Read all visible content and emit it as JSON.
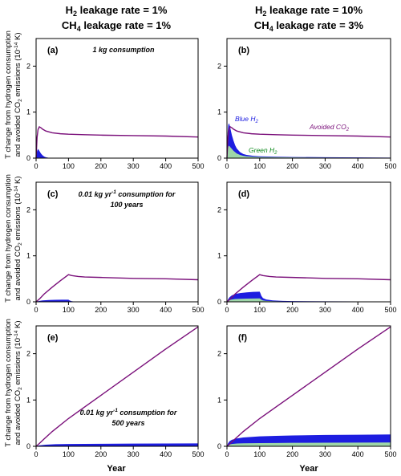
{
  "columns": [
    {
      "line1_main": "H",
      "line1_sub": "2",
      "line1_rest": " leakage rate = 1%",
      "line2_main": "CH",
      "line2_sub": "4",
      "line2_rest": " leakage rate = 1%"
    },
    {
      "line1_main": "H",
      "line1_sub": "2",
      "line1_rest": " leakage rate = 10%",
      "line2_main": "CH",
      "line2_sub": "4",
      "line2_rest": " leakage rate = 3%"
    }
  ],
  "ylabel_line1": "T change from hydrogen consumption",
  "ylabel_line2_a": "and avoided CO",
  "ylabel_line2_sub": "2",
  "ylabel_line2_b": " emissions (10",
  "ylabel_line2_sup": "-14",
  "ylabel_line2_c": " K)",
  "xlabel": "Year",
  "colors": {
    "avoided_co2": "#7a0f7a",
    "blue_h2": "#1d1de0",
    "green_h2": "#9ed6a8"
  },
  "series_labels": {
    "blue_main": "Blue H",
    "blue_sub": "2",
    "green_main": "Green H",
    "green_sub": "2",
    "co2_main": "Avoided CO",
    "co2_sub": "2"
  },
  "rows": [
    {
      "a1": "1 kg consumption",
      "a2": ""
    },
    {
      "a1": "0.01 kg yr",
      "a1_sup": "-1",
      "a1_rest": " consumption for",
      "a2": "100 years"
    },
    {
      "a1": "0.01 kg yr",
      "a1_sup": "-1",
      "a1_rest": " consumption for",
      "a2": "500 years"
    }
  ],
  "chart_data": [
    {
      "panel": "(a)",
      "type": "area",
      "xlim": [
        0,
        500
      ],
      "ylim": [
        0,
        2.6
      ],
      "xticks": [
        0,
        100,
        200,
        300,
        400,
        500
      ],
      "yticks": [
        0,
        1,
        2
      ],
      "series": [
        {
          "name": "Avoided CO2",
          "kind": "line",
          "x": [
            0,
            3,
            6,
            10,
            15,
            20,
            30,
            50,
            75,
            100,
            150,
            200,
            300,
            400,
            500
          ],
          "y": [
            0,
            0.45,
            0.62,
            0.68,
            0.66,
            0.63,
            0.59,
            0.55,
            0.53,
            0.52,
            0.51,
            0.5,
            0.49,
            0.48,
            0.46
          ]
        },
        {
          "name": "Blue H2",
          "kind": "area",
          "x": [
            0,
            3,
            6,
            10,
            15,
            20,
            25,
            30,
            35,
            40,
            500
          ],
          "y": [
            0,
            0.15,
            0.2,
            0.16,
            0.1,
            0.06,
            0.035,
            0.02,
            0.012,
            0.005,
            0
          ]
        },
        {
          "name": "Green H2",
          "kind": "area",
          "x": [
            0,
            5,
            10,
            20,
            40,
            500
          ],
          "y": [
            0,
            0.01,
            0.01,
            0.005,
            0.002,
            0
          ]
        }
      ]
    },
    {
      "panel": "(b)",
      "type": "area",
      "xlim": [
        0,
        500
      ],
      "ylim": [
        0,
        2.6
      ],
      "xticks": [
        0,
        100,
        200,
        300,
        400,
        500
      ],
      "yticks": [
        0,
        1,
        2
      ],
      "series": [
        {
          "name": "Avoided CO2",
          "kind": "line",
          "x": [
            0,
            3,
            6,
            10,
            15,
            20,
            30,
            50,
            75,
            100,
            150,
            200,
            300,
            400,
            500
          ],
          "y": [
            0,
            0.45,
            0.62,
            0.68,
            0.66,
            0.63,
            0.59,
            0.55,
            0.53,
            0.52,
            0.51,
            0.5,
            0.49,
            0.48,
            0.46
          ]
        },
        {
          "name": "Blue H2",
          "kind": "area",
          "x": [
            0,
            2,
            4,
            6,
            8,
            10,
            15,
            20,
            25,
            30,
            40,
            50,
            60,
            80,
            100,
            150,
            200,
            300,
            400,
            500
          ],
          "y": [
            0,
            0.55,
            0.72,
            0.76,
            0.72,
            0.66,
            0.5,
            0.38,
            0.28,
            0.21,
            0.13,
            0.09,
            0.07,
            0.05,
            0.04,
            0.03,
            0.025,
            0.02,
            0.015,
            0.01
          ]
        },
        {
          "name": "Green H2",
          "kind": "area",
          "x": [
            0,
            2,
            4,
            6,
            8,
            10,
            15,
            20,
            30,
            40,
            50,
            60,
            80,
            100,
            150,
            200,
            300,
            400,
            500
          ],
          "y": [
            0,
            0.18,
            0.25,
            0.27,
            0.26,
            0.24,
            0.2,
            0.16,
            0.1,
            0.07,
            0.05,
            0.04,
            0.03,
            0.025,
            0.02,
            0.015,
            0.01,
            0.008,
            0.005
          ]
        }
      ]
    },
    {
      "panel": "(c)",
      "type": "area",
      "xlim": [
        0,
        500
      ],
      "ylim": [
        0,
        2.6
      ],
      "xticks": [
        0,
        100,
        200,
        300,
        400,
        500
      ],
      "yticks": [
        0,
        1,
        2
      ],
      "series": [
        {
          "name": "Avoided CO2",
          "kind": "line",
          "x": [
            0,
            10,
            25,
            50,
            75,
            100,
            110,
            130,
            150,
            200,
            300,
            400,
            500
          ],
          "y": [
            0,
            0.06,
            0.17,
            0.32,
            0.46,
            0.59,
            0.57,
            0.55,
            0.54,
            0.53,
            0.51,
            0.5,
            0.48
          ]
        },
        {
          "name": "Blue H2",
          "kind": "area",
          "x": [
            0,
            5,
            10,
            20,
            40,
            60,
            80,
            100,
            103,
            110,
            120,
            130,
            500
          ],
          "y": [
            0,
            0.01,
            0.02,
            0.03,
            0.04,
            0.043,
            0.045,
            0.045,
            0.03,
            0.012,
            0.004,
            0,
            0
          ]
        },
        {
          "name": "Green H2",
          "kind": "area",
          "x": [
            0,
            20,
            100,
            110,
            500
          ],
          "y": [
            0,
            0.005,
            0.006,
            0,
            0
          ]
        }
      ]
    },
    {
      "panel": "(d)",
      "type": "area",
      "xlim": [
        0,
        500
      ],
      "ylim": [
        0,
        2.6
      ],
      "xticks": [
        0,
        100,
        200,
        300,
        400,
        500
      ],
      "yticks": [
        0,
        1,
        2
      ],
      "series": [
        {
          "name": "Avoided CO2",
          "kind": "line",
          "x": [
            0,
            10,
            25,
            50,
            75,
            100,
            110,
            130,
            150,
            200,
            300,
            400,
            500
          ],
          "y": [
            0,
            0.06,
            0.17,
            0.32,
            0.46,
            0.59,
            0.57,
            0.55,
            0.54,
            0.53,
            0.51,
            0.5,
            0.48
          ]
        },
        {
          "name": "Blue H2",
          "kind": "area",
          "x": [
            0,
            3,
            8,
            15,
            25,
            40,
            60,
            80,
            100,
            102,
            105,
            110,
            120,
            140,
            170,
            200,
            300,
            400,
            500
          ],
          "y": [
            0,
            0.05,
            0.1,
            0.14,
            0.17,
            0.19,
            0.205,
            0.215,
            0.22,
            0.19,
            0.13,
            0.08,
            0.05,
            0.03,
            0.02,
            0.015,
            0.01,
            0.008,
            0.005
          ]
        },
        {
          "name": "Green H2",
          "kind": "area",
          "x": [
            0,
            3,
            8,
            15,
            25,
            40,
            60,
            80,
            100,
            102,
            105,
            110,
            120,
            140,
            170,
            200,
            300,
            400,
            500
          ],
          "y": [
            0,
            0.02,
            0.04,
            0.05,
            0.06,
            0.065,
            0.07,
            0.072,
            0.075,
            0.065,
            0.045,
            0.03,
            0.02,
            0.012,
            0.008,
            0.005,
            0.004,
            0.003,
            0.002
          ]
        }
      ]
    },
    {
      "panel": "(e)",
      "type": "area",
      "xlim": [
        0,
        500
      ],
      "ylim": [
        0,
        2.6
      ],
      "xticks": [
        0,
        100,
        200,
        300,
        400,
        500
      ],
      "yticks": [
        0,
        1,
        2
      ],
      "series": [
        {
          "name": "Avoided CO2",
          "kind": "line",
          "x": [
            0,
            10,
            25,
            50,
            100,
            200,
            300,
            400,
            500
          ],
          "y": [
            0,
            0.06,
            0.16,
            0.32,
            0.6,
            1.1,
            1.6,
            2.1,
            2.58
          ]
        },
        {
          "name": "Blue H2",
          "kind": "area",
          "x": [
            0,
            10,
            30,
            60,
            100,
            200,
            300,
            400,
            500
          ],
          "y": [
            0,
            0.02,
            0.035,
            0.045,
            0.05,
            0.055,
            0.058,
            0.06,
            0.062
          ]
        },
        {
          "name": "Green H2",
          "kind": "area",
          "x": [
            0,
            30,
            100,
            300,
            500
          ],
          "y": [
            0,
            0.005,
            0.006,
            0.007,
            0.007
          ]
        }
      ]
    },
    {
      "panel": "(f)",
      "type": "area",
      "xlim": [
        0,
        500
      ],
      "ylim": [
        0,
        2.6
      ],
      "xticks": [
        0,
        100,
        200,
        300,
        400,
        500
      ],
      "yticks": [
        0,
        1,
        2
      ],
      "series": [
        {
          "name": "Avoided CO2",
          "kind": "line",
          "x": [
            0,
            10,
            25,
            50,
            100,
            200,
            300,
            400,
            500
          ],
          "y": [
            0,
            0.06,
            0.16,
            0.32,
            0.6,
            1.1,
            1.6,
            2.1,
            2.58
          ]
        },
        {
          "name": "Blue H2",
          "kind": "area",
          "x": [
            0,
            3,
            8,
            15,
            30,
            50,
            100,
            150,
            200,
            300,
            400,
            500
          ],
          "y": [
            0,
            0.06,
            0.11,
            0.14,
            0.17,
            0.19,
            0.215,
            0.225,
            0.235,
            0.245,
            0.25,
            0.255
          ]
        },
        {
          "name": "Green H2",
          "kind": "area",
          "x": [
            0,
            3,
            8,
            15,
            30,
            50,
            100,
            150,
            200,
            300,
            400,
            500
          ],
          "y": [
            0,
            0.02,
            0.04,
            0.05,
            0.06,
            0.065,
            0.07,
            0.072,
            0.075,
            0.078,
            0.08,
            0.082
          ]
        }
      ]
    }
  ]
}
